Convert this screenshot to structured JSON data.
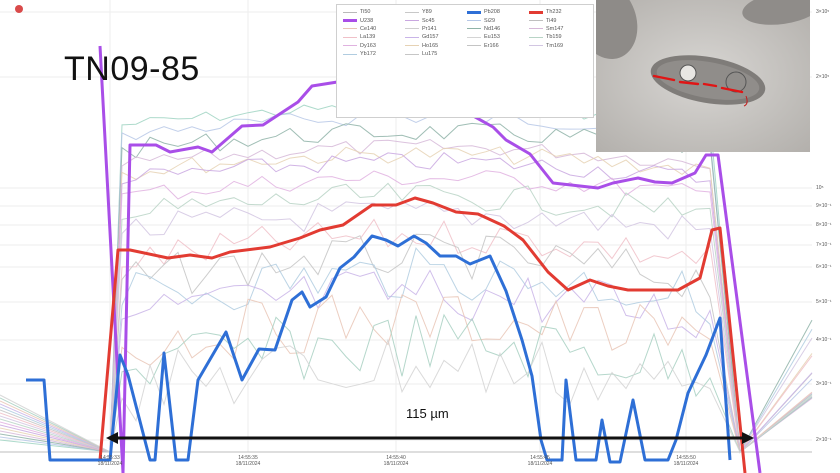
{
  "title": "TN09-85",
  "scale_label": "115 µm",
  "chart_data": {
    "type": "line",
    "yscale": "log",
    "x_ticks": [
      {
        "time": "14:55:33",
        "date": "18/11/2024"
      },
      {
        "time": "14:55:35",
        "date": "18/11/2024"
      },
      {
        "time": "14:55:40",
        "date": "18/11/2024"
      },
      {
        "time": "14:55:45",
        "date": "18/11/2024"
      },
      {
        "time": "14:55:50",
        "date": "18/11/2024"
      }
    ],
    "y_ticks": [
      "3×10⁵",
      "2×10⁵",
      "10⁵",
      "9×10⁻¹",
      "8×10⁻¹",
      "7×10⁻¹",
      "6×10⁻¹",
      "5×10⁻¹",
      "4×10⁻¹",
      "3×10⁻¹",
      "2×10⁻¹"
    ],
    "legend": [
      {
        "name": "Ti50",
        "color": "#b9b9b9",
        "bold": false
      },
      {
        "name": "Y89",
        "color": "#c8c8c8",
        "bold": false
      },
      {
        "name": "Pb208",
        "color": "#2e6fd6",
        "bold": true
      },
      {
        "name": "Th232",
        "color": "#e23b32",
        "bold": true
      },
      {
        "name": "U238",
        "color": "#a94ee8",
        "bold": true
      },
      {
        "name": "Sc45",
        "color": "#c9a7e0",
        "bold": false
      },
      {
        "name": "Si29",
        "color": "#b6c7e6",
        "bold": false
      },
      {
        "name": "Ti49",
        "color": "#bfbfbf",
        "bold": false
      },
      {
        "name": "Ce140",
        "color": "#e9c5b6",
        "bold": false
      },
      {
        "name": "Pr141",
        "color": "#cfcfcf",
        "bold": false
      },
      {
        "name": "Nd146",
        "color": "#8fb3a8",
        "bold": false
      },
      {
        "name": "Sm147",
        "color": "#d6b8d8",
        "bold": false
      },
      {
        "name": "La139",
        "color": "#f0c0c8",
        "bold": false
      },
      {
        "name": "Gd157",
        "color": "#c9b4e8",
        "bold": false
      },
      {
        "name": "Eu153",
        "color": "#d4d4d4",
        "bold": false
      },
      {
        "name": "Tb159",
        "color": "#b8d4c6",
        "bold": false
      },
      {
        "name": "Dy163",
        "color": "#e0b2e0",
        "bold": false
      },
      {
        "name": "Ho165",
        "color": "#e6d2b4",
        "bold": false
      },
      {
        "name": "Er166",
        "color": "#c4c4c4",
        "bold": false
      },
      {
        "name": "Tm169",
        "color": "#d2c6e2",
        "bold": false
      },
      {
        "name": "Yb172",
        "color": "#b0cce0",
        "bold": false
      },
      {
        "name": "Lu175",
        "color": "#c6c6c6",
        "bold": false
      }
    ],
    "series": [
      {
        "name": "U238",
        "color": "#a94ee8",
        "points": [
          [
            100,
            46
          ],
          [
            123,
            473
          ],
          [
            130,
            145
          ],
          [
            156,
            145
          ],
          [
            170,
            152
          ],
          [
            198,
            147
          ],
          [
            212,
            152
          ],
          [
            242,
            126
          ],
          [
            263,
            125
          ],
          [
            298,
            102
          ],
          [
            312,
            86
          ],
          [
            350,
            80
          ],
          [
            366,
            88
          ],
          [
            396,
            80
          ],
          [
            412,
            88
          ],
          [
            446,
            96
          ],
          [
            466,
            112
          ],
          [
            493,
            127
          ],
          [
            506,
            140
          ],
          [
            530,
            154
          ],
          [
            553,
            183
          ],
          [
            598,
            188
          ],
          [
            613,
            183
          ],
          [
            638,
            178
          ],
          [
            655,
            182
          ],
          [
            672,
            183
          ],
          [
            695,
            173
          ],
          [
            706,
            155
          ],
          [
            718,
            155
          ],
          [
            760,
            473
          ]
        ]
      },
      {
        "name": "Th232",
        "color": "#e23b32",
        "points": [
          [
            100,
            460
          ],
          [
            118,
            250
          ],
          [
            130,
            250
          ],
          [
            168,
            258
          ],
          [
            190,
            255
          ],
          [
            212,
            258
          ],
          [
            230,
            252
          ],
          [
            270,
            247
          ],
          [
            300,
            238
          ],
          [
            320,
            230
          ],
          [
            343,
            225
          ],
          [
            372,
            205
          ],
          [
            396,
            205
          ],
          [
            415,
            198
          ],
          [
            433,
            203
          ],
          [
            456,
            212
          ],
          [
            478,
            214
          ],
          [
            504,
            226
          ],
          [
            523,
            240
          ],
          [
            548,
            272
          ],
          [
            568,
            290
          ],
          [
            590,
            280
          ],
          [
            608,
            286
          ],
          [
            628,
            290
          ],
          [
            660,
            290
          ],
          [
            678,
            290
          ],
          [
            700,
            278
          ],
          [
            712,
            230
          ],
          [
            720,
            228
          ],
          [
            745,
            473
          ]
        ]
      },
      {
        "name": "Pb208",
        "color": "#2e6fd6",
        "points": [
          [
            26,
            380
          ],
          [
            44,
            380
          ],
          [
            50,
            460
          ],
          [
            110,
            460
          ],
          [
            120,
            355
          ],
          [
            128,
            375
          ],
          [
            150,
            460
          ],
          [
            155,
            460
          ],
          [
            164,
            353
          ],
          [
            176,
            460
          ],
          [
            188,
            460
          ],
          [
            198,
            380
          ],
          [
            226,
            332
          ],
          [
            242,
            380
          ],
          [
            259,
            349
          ],
          [
            275,
            350
          ],
          [
            292,
            300
          ],
          [
            302,
            292
          ],
          [
            310,
            307
          ],
          [
            326,
            297
          ],
          [
            340,
            268
          ],
          [
            354,
            257
          ],
          [
            372,
            236
          ],
          [
            386,
            240
          ],
          [
            398,
            246
          ],
          [
            414,
            236
          ],
          [
            426,
            243
          ],
          [
            440,
            256
          ],
          [
            456,
            256
          ],
          [
            470,
            264
          ],
          [
            490,
            256
          ],
          [
            506,
            291
          ],
          [
            522,
            340
          ],
          [
            532,
            376
          ],
          [
            541,
            440
          ],
          [
            547,
            460
          ],
          [
            562,
            460
          ],
          [
            566,
            380
          ],
          [
            576,
            460
          ],
          [
            596,
            460
          ],
          [
            602,
            420
          ],
          [
            610,
            462
          ],
          [
            620,
            462
          ],
          [
            633,
            400
          ],
          [
            645,
            460
          ],
          [
            668,
            460
          ],
          [
            676,
            440
          ],
          [
            688,
            393
          ],
          [
            706,
            355
          ],
          [
            720,
            318
          ],
          [
            730,
            460
          ]
        ]
      }
    ],
    "scale_bar": {
      "from_time": "14:55:33",
      "to_time": "14:55:51",
      "length": "115 µm"
    }
  }
}
